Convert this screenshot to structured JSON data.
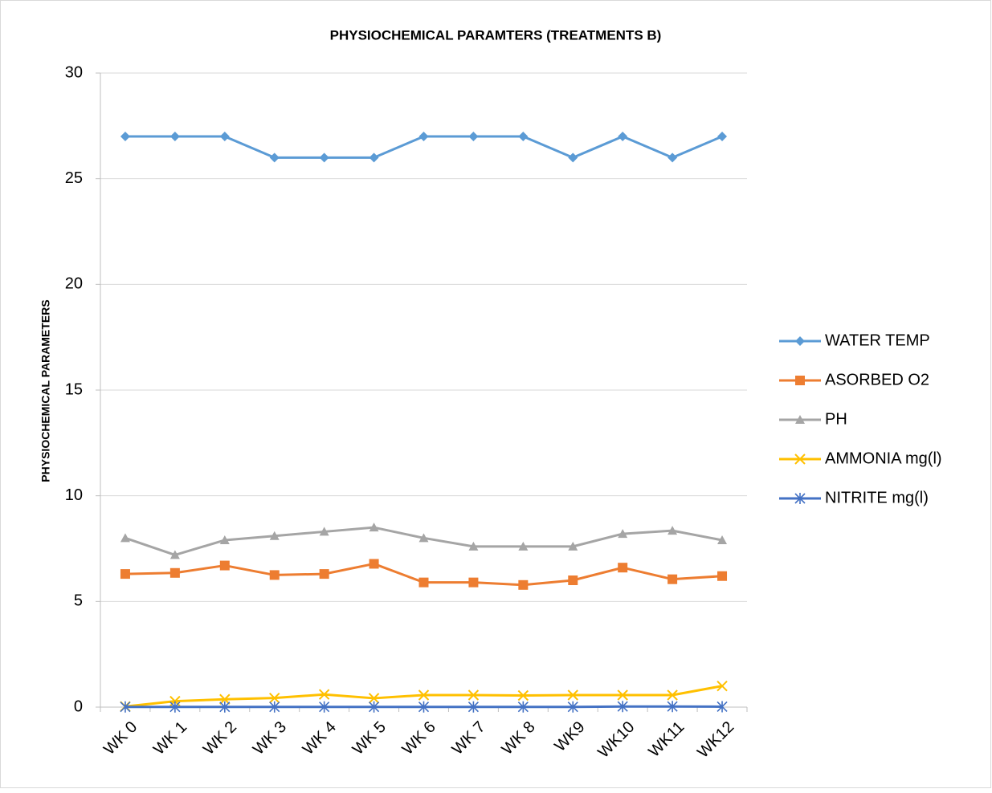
{
  "chart_data": {
    "type": "line",
    "title": "PHYSIOCHEMICAL PARAMTERS (TREATMENTS B)",
    "y_label": "PHYSIOCHEMICAL PARAMETERS",
    "categories": [
      "WK 0",
      "WK 1",
      "WK 2",
      "WK 3",
      "WK 4",
      "WK 5",
      "WK 6",
      "WK 7",
      "WK 8",
      "WK9",
      "WK10",
      "WK11",
      "WK12"
    ],
    "series": [
      {
        "name": "WATER TEMP",
        "color": "#5b9bd5",
        "marker": "diamond",
        "values": [
          27,
          27,
          27,
          26,
          26,
          26,
          27,
          27,
          27,
          26,
          27,
          26,
          27
        ]
      },
      {
        "name": "ASORBED O2",
        "color": "#ed7d31",
        "marker": "square",
        "values": [
          6.3,
          6.35,
          6.7,
          6.25,
          6.3,
          6.78,
          5.9,
          5.9,
          5.78,
          6.0,
          6.6,
          6.05,
          6.2
        ]
      },
      {
        "name": "PH",
        "color": "#a5a5a5",
        "marker": "triangle",
        "values": [
          8.0,
          7.2,
          7.9,
          8.1,
          8.3,
          8.5,
          8.0,
          7.6,
          7.6,
          7.6,
          8.2,
          8.35,
          7.9
        ]
      },
      {
        "name": "AMMONIA mg(l)",
        "color": "#ffc000",
        "marker": "x",
        "values": [
          0.03,
          0.28,
          0.37,
          0.43,
          0.6,
          0.42,
          0.57,
          0.57,
          0.55,
          0.57,
          0.57,
          0.57,
          1.0
        ]
      },
      {
        "name": "NITRITE mg(l)",
        "color": "#4472c4",
        "marker": "star",
        "values": [
          0.01,
          0.01,
          0.01,
          0.01,
          0.01,
          0.01,
          0.01,
          0.01,
          0.01,
          0.01,
          0.03,
          0.03,
          0.02
        ]
      }
    ],
    "ylim": [
      0,
      30
    ],
    "yticks": [
      0,
      5,
      10,
      15,
      20,
      25,
      30
    ],
    "grid": true,
    "legend": "right"
  }
}
